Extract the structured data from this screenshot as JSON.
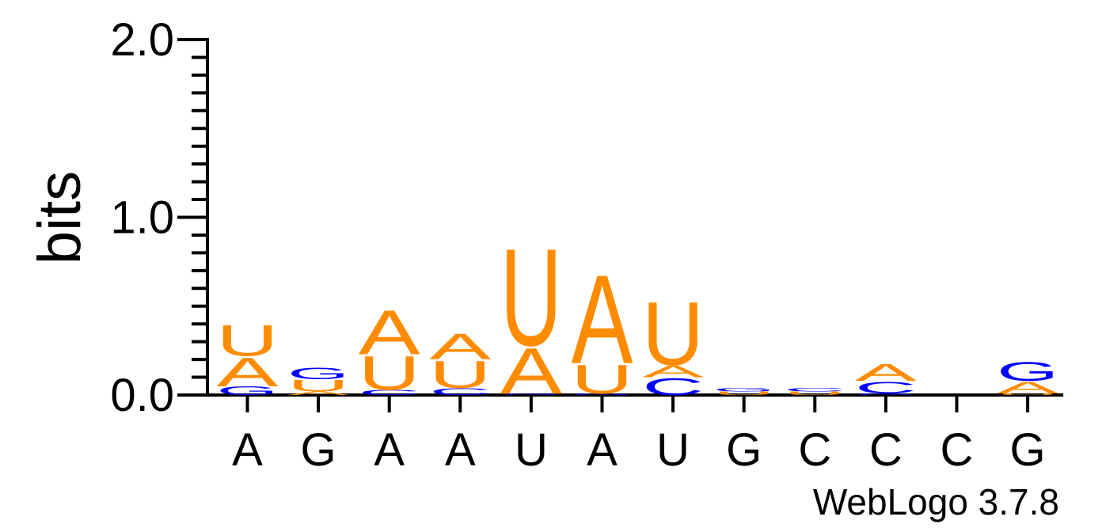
{
  "chart_data": {
    "type": "sequence-logo",
    "ylabel": "bits",
    "ylim": [
      0,
      2
    ],
    "yticks": [
      "0.0",
      "1.0",
      "2.0"
    ],
    "footer": "WebLogo 3.7.8",
    "colors": {
      "A": "#FF8C00",
      "U": "#FF8C00",
      "G": "#0000FF",
      "C": "#0000FF"
    },
    "positions": [
      {
        "label": "A",
        "stack": [
          {
            "letter": "G",
            "bits": 0.05
          },
          {
            "letter": "A",
            "bits": 0.17
          },
          {
            "letter": "U",
            "bits": 0.18
          }
        ]
      },
      {
        "label": "G",
        "stack": [
          {
            "letter": "A",
            "bits": 0.02
          },
          {
            "letter": "U",
            "bits": 0.07
          },
          {
            "letter": "G",
            "bits": 0.07
          }
        ]
      },
      {
        "label": "A",
        "stack": [
          {
            "letter": "C",
            "bits": 0.03
          },
          {
            "letter": "U",
            "bits": 0.2
          },
          {
            "letter": "A",
            "bits": 0.26
          }
        ]
      },
      {
        "label": "A",
        "stack": [
          {
            "letter": "C",
            "bits": 0.04
          },
          {
            "letter": "U",
            "bits": 0.16
          },
          {
            "letter": "A",
            "bits": 0.15
          }
        ]
      },
      {
        "label": "U",
        "stack": [
          {
            "letter": "G",
            "bits": 0.01
          },
          {
            "letter": "A",
            "bits": 0.27
          },
          {
            "letter": "U",
            "bits": 0.57
          }
        ]
      },
      {
        "label": "A",
        "stack": [
          {
            "letter": "G",
            "bits": 0.01
          },
          {
            "letter": "U",
            "bits": 0.17
          },
          {
            "letter": "A",
            "bits": 0.52
          }
        ]
      },
      {
        "label": "U",
        "stack": [
          {
            "letter": "C",
            "bits": 0.1
          },
          {
            "letter": "A",
            "bits": 0.07
          },
          {
            "letter": "U",
            "bits": 0.37
          }
        ]
      },
      {
        "label": "G",
        "stack": [
          {
            "letter": "U",
            "bits": 0.02
          },
          {
            "letter": "G",
            "bits": 0.02
          }
        ]
      },
      {
        "label": "C",
        "stack": [
          {
            "letter": "U",
            "bits": 0.02
          },
          {
            "letter": "C",
            "bits": 0.02
          }
        ]
      },
      {
        "label": "C",
        "stack": [
          {
            "letter": "G",
            "bits": 0.01
          },
          {
            "letter": "C",
            "bits": 0.07
          },
          {
            "letter": "A",
            "bits": 0.1
          }
        ]
      },
      {
        "label": "C",
        "stack": []
      },
      {
        "label": "G",
        "stack": [
          {
            "letter": "U",
            "bits": 0.01
          },
          {
            "letter": "A",
            "bits": 0.07
          },
          {
            "letter": "G",
            "bits": 0.11
          }
        ]
      }
    ]
  }
}
